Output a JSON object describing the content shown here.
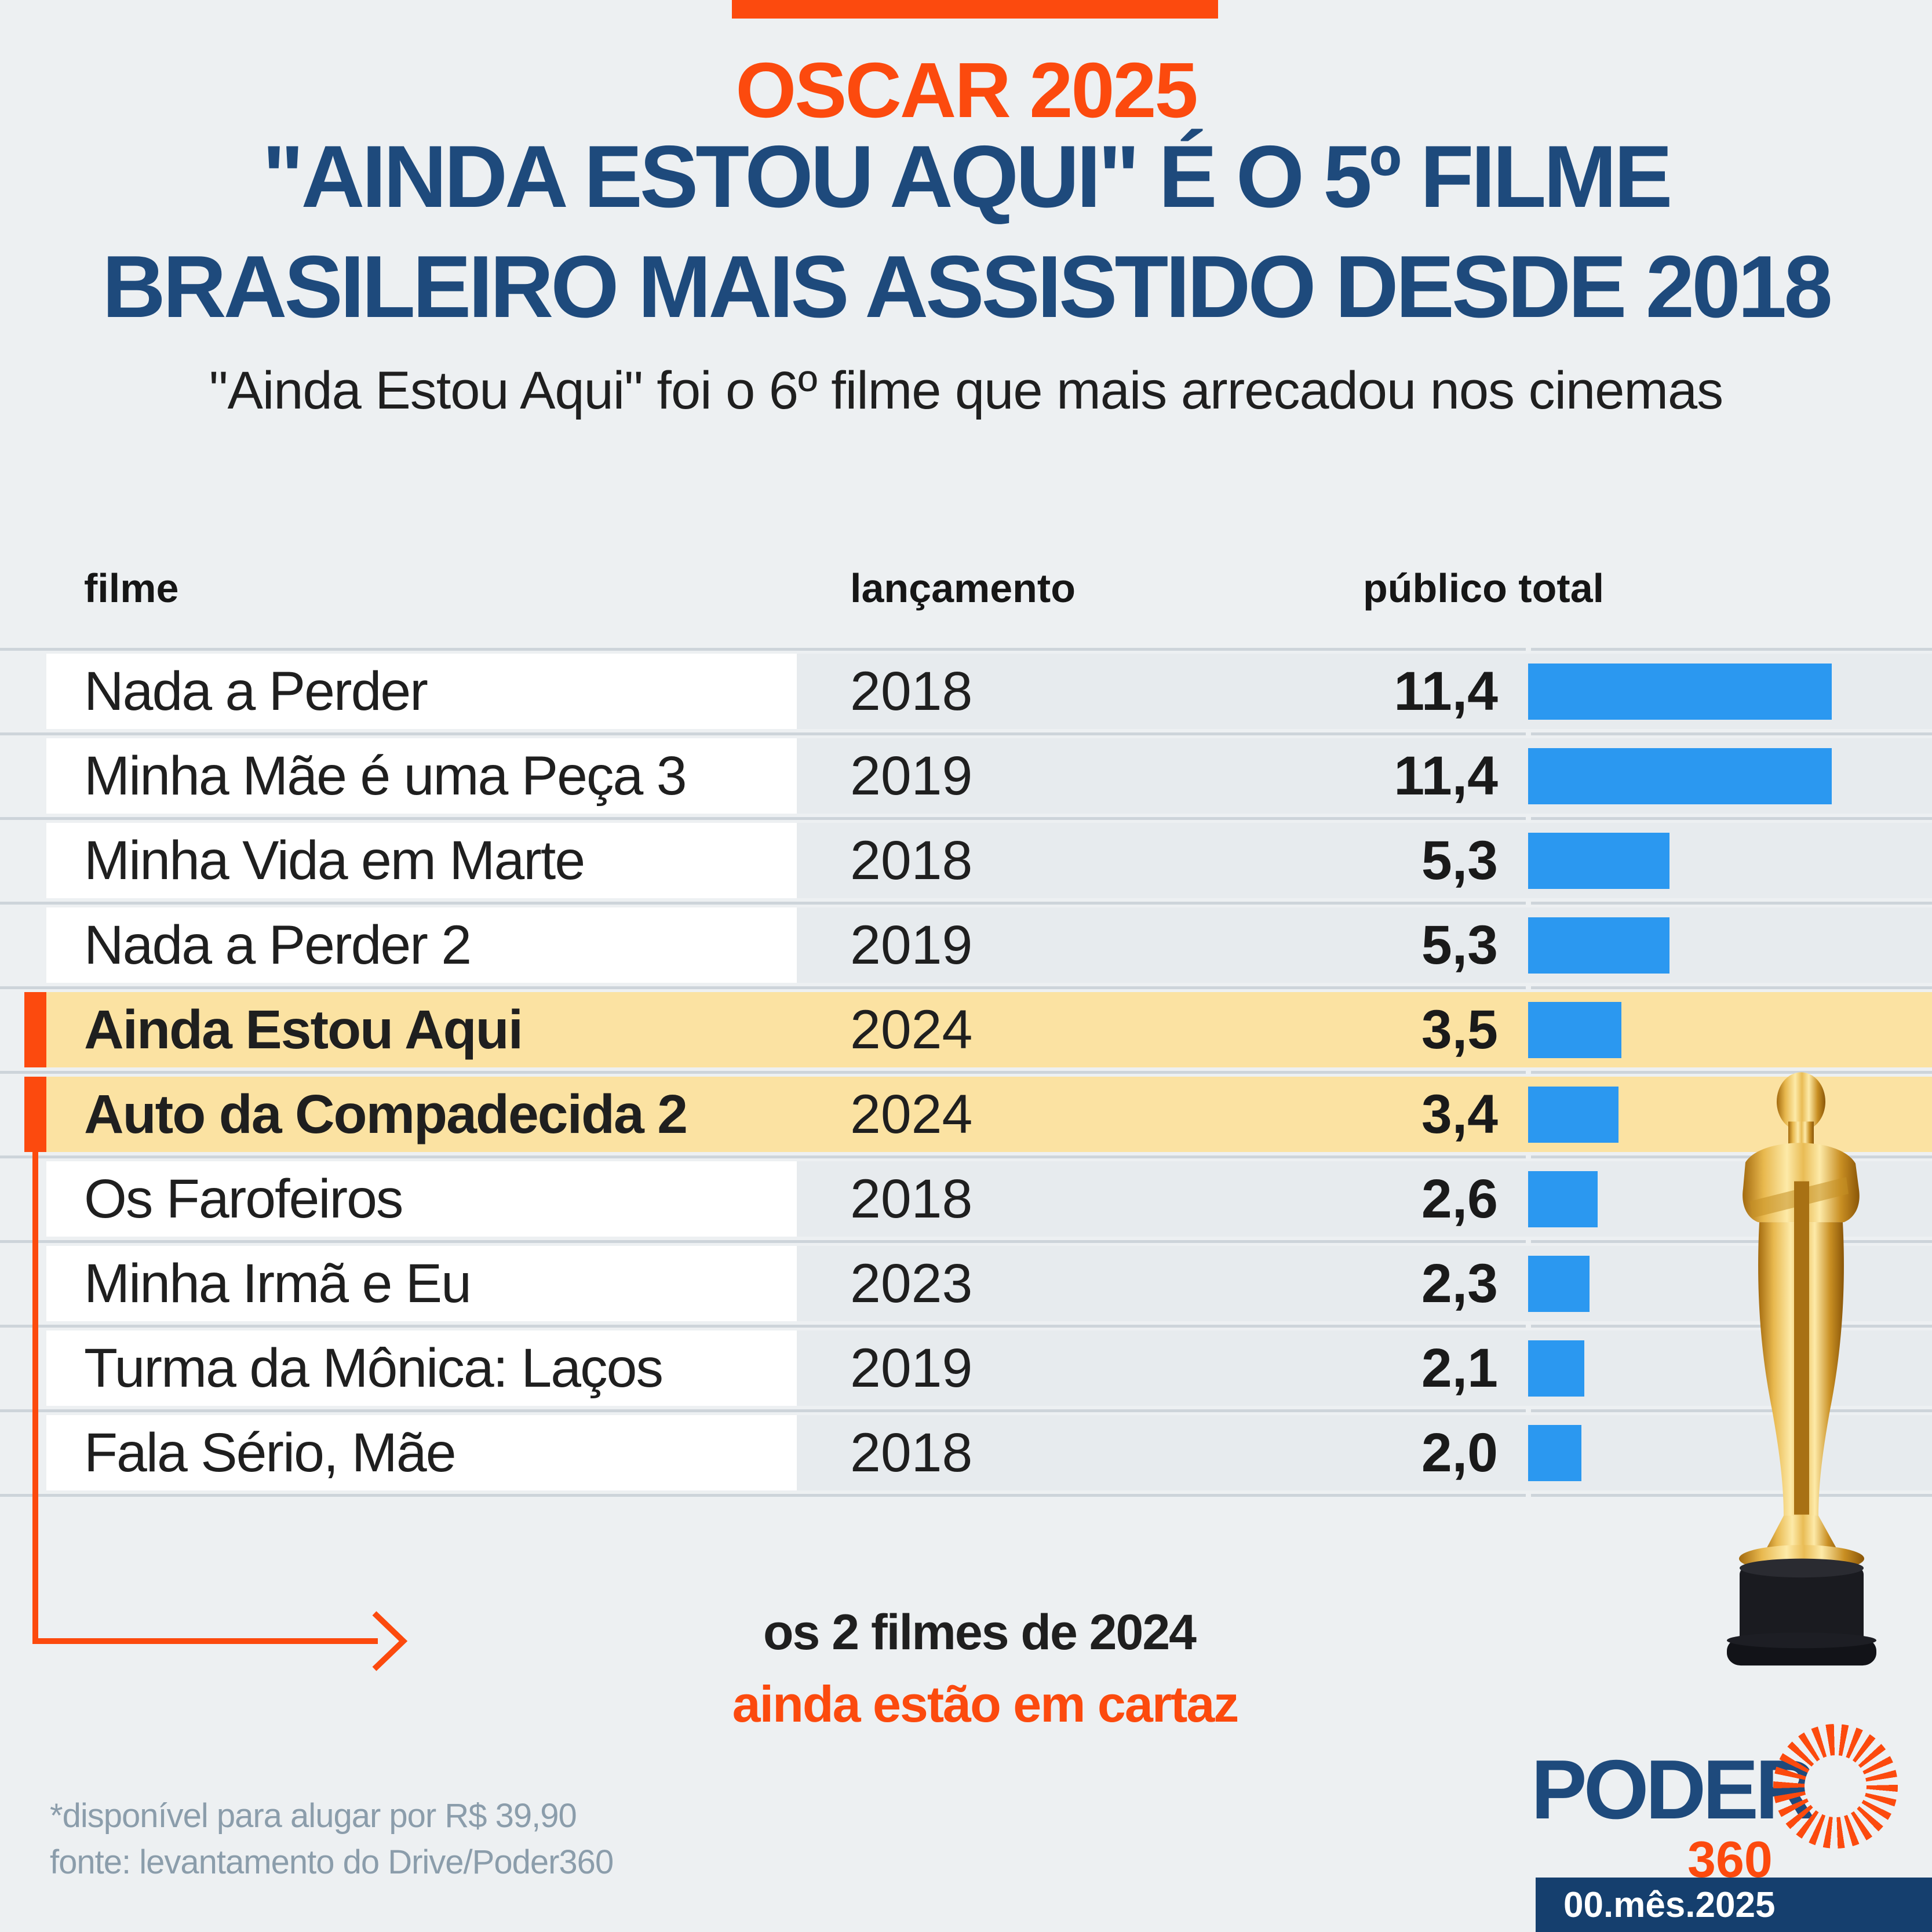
{
  "header": {
    "kicker": "OSCAR 2025",
    "title_line1": "\"AINDA ESTOU AQUI\" É O 5º FILME",
    "title_line2": "BRASILEIRO MAIS ASSISTIDO DESDE 2018",
    "subtitle": "\"Ainda Estou Aqui\" foi o 6º filme que mais arrecadou nos cinemas"
  },
  "table": {
    "columns": [
      "filme",
      "lançamento",
      "público total"
    ],
    "rows": [
      {
        "film": "Nada a Perder",
        "year": "2018",
        "value": "11,4",
        "highlight": false
      },
      {
        "film": "Minha Mãe é uma Peça 3",
        "year": "2019",
        "value": "11,4",
        "highlight": false
      },
      {
        "film": "Minha Vida em Marte",
        "year": "2018",
        "value": "5,3",
        "highlight": false
      },
      {
        "film": "Nada a Perder 2",
        "year": "2019",
        "value": "5,3",
        "highlight": false
      },
      {
        "film": "Ainda Estou Aqui",
        "year": "2024",
        "value": "3,5",
        "highlight": true
      },
      {
        "film": "Auto da Compadecida 2",
        "year": "2024",
        "value": "3,4",
        "highlight": true
      },
      {
        "film": "Os Farofeiros",
        "year": "2018",
        "value": "2,6",
        "highlight": false
      },
      {
        "film": "Minha Irmã e Eu",
        "year": "2023",
        "value": "2,3",
        "highlight": false
      },
      {
        "film": "Turma da Mônica: Laços",
        "year": "2019",
        "value": "2,1",
        "highlight": false
      },
      {
        "film": "Fala Sério, Mãe",
        "year": "2018",
        "value": "2,0",
        "highlight": false
      }
    ]
  },
  "chart_data": {
    "type": "bar",
    "orientation": "horizontal",
    "title": "\"AINDA ESTOU AQUI\" É O 5º FILME BRASILEIRO MAIS ASSISTIDO DESDE 2018",
    "subtitle": "\"Ainda Estou Aqui\" foi o 6º filme que mais arrecadou nos cinemas",
    "categories": [
      "Nada a Perder",
      "Minha Mãe é uma Peça 3",
      "Minha Vida em Marte",
      "Nada a Perder 2",
      "Ainda Estou Aqui",
      "Auto da Compadecida 2",
      "Os Farofeiros",
      "Minha Irmã e Eu",
      "Turma da Mônica: Laços",
      "Fala Sério, Mãe"
    ],
    "years": [
      2018,
      2019,
      2018,
      2019,
      2024,
      2024,
      2018,
      2023,
      2019,
      2018
    ],
    "values": [
      11.4,
      11.4,
      5.3,
      5.3,
      3.5,
      3.4,
      2.6,
      2.3,
      2.1,
      2.0
    ],
    "xlabel": "público total",
    "ylabel": "filme",
    "xlim": [
      0,
      12
    ],
    "highlighted": [
      "Ainda Estou Aqui",
      "Auto da Compadecida 2"
    ],
    "legend": false,
    "grid": false
  },
  "callout": {
    "line1": "os 2 filmes de 2024",
    "line2": "ainda estão em cartaz"
  },
  "footnotes": [
    "*disponível para alugar por R$ 39,90",
    "fonte: levantamento do Drive/Poder360"
  ],
  "logo": {
    "brand": "PODER",
    "suffix": "360"
  },
  "date_badge": "00.mês.2025",
  "colors": {
    "background": "#edf0f2",
    "accent_orange": "#fc4a0e",
    "title_navy": "#1e4a7c",
    "bar_blue": "#2b98f0",
    "highlight_yellow": "#fbe2a2",
    "row_strip": "#e7ebee",
    "separator": "#cdd4da",
    "footnote_gray": "#8b9dab",
    "badge_navy": "#153f6e"
  }
}
